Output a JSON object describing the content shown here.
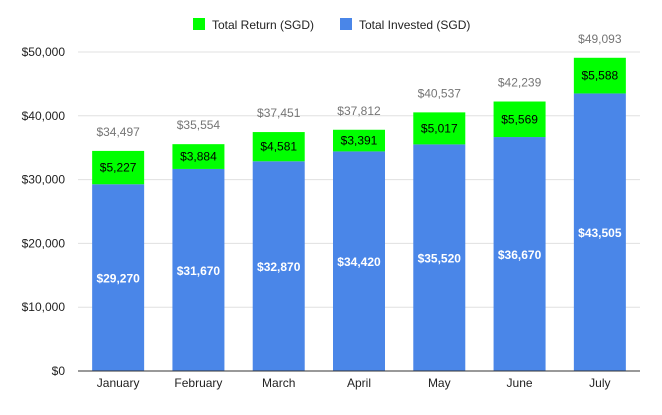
{
  "chart_data": {
    "type": "bar",
    "stacked": true,
    "categories": [
      "January",
      "February",
      "March",
      "April",
      "May",
      "June",
      "July"
    ],
    "series": [
      {
        "name": "Total Invested (SGD)",
        "color": "#4a86e8",
        "values": [
          29270,
          31670,
          32870,
          34420,
          35520,
          36670,
          43505
        ],
        "labels": [
          "$29,270",
          "$31,670",
          "$32,870",
          "$34,420",
          "$35,520",
          "$36,670",
          "$43,505"
        ]
      },
      {
        "name": "Total Return (SGD)",
        "color": "#00ff00",
        "values": [
          5227,
          3884,
          4581,
          3391,
          5017,
          5569,
          5588
        ],
        "labels": [
          "$5,227",
          "$3,884",
          "$4,581",
          "$3,391",
          "$5,017",
          "$5,569",
          "$5,588"
        ]
      }
    ],
    "totals": [
      34497,
      35554,
      37451,
      37812,
      40537,
      42239,
      49093
    ],
    "total_labels": [
      "$34,497",
      "$35,554",
      "$37,451",
      "$37,812",
      "$40,537",
      "$42,239",
      "$49,093"
    ],
    "legend": [
      {
        "name": "Total Return (SGD)",
        "color": "#00ff00"
      },
      {
        "name": "Total Invested (SGD)",
        "color": "#4a86e8"
      }
    ],
    "legend_position": "top",
    "ylim": [
      0,
      50000
    ],
    "yticks": [
      0,
      10000,
      20000,
      30000,
      40000,
      50000
    ],
    "ytick_labels": [
      "$0",
      "$10,000",
      "$20,000",
      "$30,000",
      "$40,000",
      "$50,000"
    ],
    "grid": true,
    "colors": {
      "total_label": "#757575",
      "invested_label": "#ffffff",
      "return_label": "#000000",
      "axis_text": "#222222",
      "gridline": "#e0e0e0",
      "baseline": "#333333"
    }
  }
}
